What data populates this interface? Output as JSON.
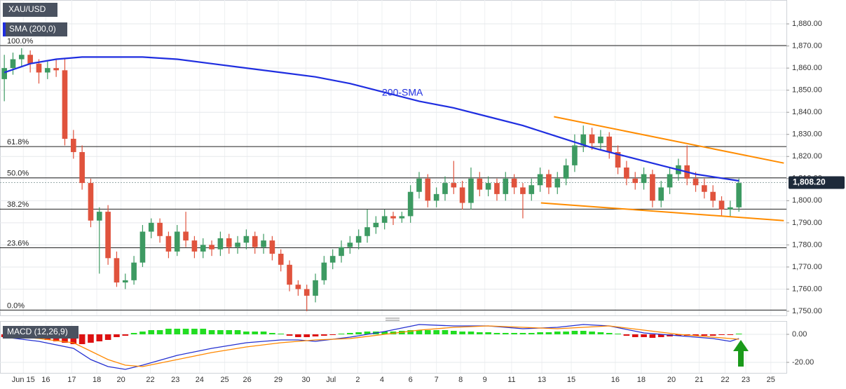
{
  "chart_data": {
    "type": "candlestick",
    "symbol": "XAU/USD",
    "xlim": [
      -0.5,
      90.5
    ],
    "xticks": [
      {
        "value": 2.2,
        "label": "Jun 15"
      },
      {
        "value": 4.8,
        "label": "16"
      },
      {
        "value": 7.8,
        "label": "17"
      },
      {
        "value": 10.7,
        "label": "18"
      },
      {
        "value": 13.5,
        "label": "20"
      },
      {
        "value": 16.9,
        "label": "22"
      },
      {
        "value": 19.8,
        "label": "23"
      },
      {
        "value": 22.6,
        "label": "24"
      },
      {
        "value": 25.5,
        "label": "25"
      },
      {
        "value": 28.1,
        "label": "26"
      },
      {
        "value": 31.7,
        "label": "29"
      },
      {
        "value": 34.9,
        "label": "30"
      },
      {
        "value": 37.8,
        "label": "Jul"
      },
      {
        "value": 40.9,
        "label": "2"
      },
      {
        "value": 43.7,
        "label": "4"
      },
      {
        "value": 47.0,
        "label": "6"
      },
      {
        "value": 50.0,
        "label": "7"
      },
      {
        "value": 52.8,
        "label": "8"
      },
      {
        "value": 55.6,
        "label": "9"
      },
      {
        "value": 58.7,
        "label": "11"
      },
      {
        "value": 62.2,
        "label": "13"
      },
      {
        "value": 65.6,
        "label": "15"
      },
      {
        "value": 70.7,
        "label": "16"
      },
      {
        "value": 73.7,
        "label": "18"
      },
      {
        "value": 77.2,
        "label": "20"
      },
      {
        "value": 80.4,
        "label": "21"
      },
      {
        "value": 83.4,
        "label": "22"
      },
      {
        "value": 85.8,
        "label": "23"
      },
      {
        "value": 88.7,
        "label": "25"
      }
    ],
    "ylim": [
      1748.1,
      1890.8
    ],
    "yticks": [
      {
        "value": 1750,
        "label": "1,750.00"
      },
      {
        "value": 1760,
        "label": "1,760.00"
      },
      {
        "value": 1770,
        "label": "1,770.00"
      },
      {
        "value": 1780,
        "label": "1,780.00"
      },
      {
        "value": 1790,
        "label": "1,790.00"
      },
      {
        "value": 1800,
        "label": "1,800.00"
      },
      {
        "value": 1810,
        "label": "1,810.00"
      },
      {
        "value": 1820,
        "label": "1,820.00"
      },
      {
        "value": 1830,
        "label": "1,830.00"
      },
      {
        "value": 1840,
        "label": "1,840.00"
      },
      {
        "value": 1850,
        "label": "1,850.00"
      },
      {
        "value": 1860,
        "label": "1,860.00"
      },
      {
        "value": 1870,
        "label": "1,870.00"
      },
      {
        "value": 1880,
        "label": "1,880.00"
      }
    ],
    "grid": true,
    "up_color": "#3d9a62",
    "down_color": "#e0533d",
    "candles": [
      [
        1855,
        1866,
        1845,
        1860
      ],
      [
        1860,
        1867,
        1857,
        1864
      ],
      [
        1864,
        1869,
        1861,
        1866
      ],
      [
        1866,
        1868,
        1858,
        1862
      ],
      [
        1862,
        1864,
        1853,
        1858
      ],
      [
        1858,
        1863,
        1855,
        1860
      ],
      [
        1860,
        1864,
        1856,
        1859
      ],
      [
        1859,
        1864,
        1825,
        1828
      ],
      [
        1828,
        1832,
        1819,
        1822
      ],
      [
        1822,
        1825,
        1805,
        1808
      ],
      [
        1808,
        1810,
        1788,
        1791
      ],
      [
        1791,
        1797,
        1767,
        1795
      ],
      [
        1795,
        1798,
        1771,
        1774
      ],
      [
        1774,
        1777,
        1761,
        1763
      ],
      [
        1763,
        1767,
        1760,
        1764
      ],
      [
        1764,
        1775,
        1762,
        1772
      ],
      [
        1772,
        1789,
        1770,
        1786
      ],
      [
        1786,
        1792,
        1783,
        1790
      ],
      [
        1790,
        1792,
        1781,
        1784
      ],
      [
        1784,
        1786,
        1774,
        1777
      ],
      [
        1777,
        1789,
        1775,
        1786
      ],
      [
        1786,
        1795,
        1779,
        1782
      ],
      [
        1782,
        1784,
        1774,
        1777
      ],
      [
        1777,
        1783,
        1774,
        1780
      ],
      [
        1780,
        1782,
        1775,
        1778
      ],
      [
        1778,
        1786,
        1775,
        1783
      ],
      [
        1783,
        1785,
        1776,
        1779
      ],
      [
        1779,
        1784,
        1776,
        1781
      ],
      [
        1781,
        1787,
        1778,
        1784
      ],
      [
        1784,
        1786,
        1776,
        1779
      ],
      [
        1779,
        1785,
        1776,
        1782
      ],
      [
        1782,
        1784,
        1773,
        1776
      ],
      [
        1776,
        1778,
        1768,
        1771
      ],
      [
        1771,
        1773,
        1759,
        1762
      ],
      [
        1762,
        1764,
        1757,
        1760
      ],
      [
        1760,
        1762,
        1750,
        1757
      ],
      [
        1757,
        1767,
        1754,
        1764
      ],
      [
        1764,
        1775,
        1762,
        1772
      ],
      [
        1772,
        1778,
        1769,
        1775
      ],
      [
        1775,
        1782,
        1772,
        1779
      ],
      [
        1779,
        1784,
        1776,
        1781
      ],
      [
        1781,
        1787,
        1778,
        1784
      ],
      [
        1784,
        1796,
        1781,
        1788
      ],
      [
        1788,
        1793,
        1785,
        1790
      ],
      [
        1790,
        1796,
        1787,
        1793
      ],
      [
        1793,
        1795,
        1789,
        1792
      ],
      [
        1792,
        1795,
        1790,
        1793
      ],
      [
        1793,
        1807,
        1790,
        1804
      ],
      [
        1804,
        1813,
        1801,
        1810
      ],
      [
        1810,
        1812,
        1797,
        1800
      ],
      [
        1800,
        1806,
        1797,
        1803
      ],
      [
        1803,
        1811,
        1800,
        1808
      ],
      [
        1808,
        1818,
        1803,
        1806
      ],
      [
        1806,
        1809,
        1796,
        1799
      ],
      [
        1799,
        1815,
        1796,
        1810
      ],
      [
        1810,
        1813,
        1802,
        1805
      ],
      [
        1805,
        1811,
        1802,
        1808
      ],
      [
        1808,
        1810,
        1800,
        1803
      ],
      [
        1803,
        1813,
        1800,
        1810
      ],
      [
        1810,
        1812,
        1803,
        1806
      ],
      [
        1806,
        1808,
        1792,
        1803
      ],
      [
        1803,
        1810,
        1800,
        1807
      ],
      [
        1807,
        1815,
        1804,
        1812
      ],
      [
        1812,
        1814,
        1803,
        1806
      ],
      [
        1806,
        1813,
        1803,
        1810
      ],
      [
        1810,
        1819,
        1807,
        1816
      ],
      [
        1816,
        1830,
        1813,
        1825
      ],
      [
        1825,
        1834,
        1822,
        1830
      ],
      [
        1830,
        1833,
        1823,
        1826
      ],
      [
        1826,
        1832,
        1823,
        1829
      ],
      [
        1829,
        1831,
        1819,
        1822
      ],
      [
        1822,
        1825,
        1812,
        1815
      ],
      [
        1815,
        1818,
        1807,
        1810
      ],
      [
        1810,
        1813,
        1805,
        1808
      ],
      [
        1808,
        1815,
        1805,
        1812
      ],
      [
        1812,
        1814,
        1797,
        1800
      ],
      [
        1800,
        1809,
        1797,
        1806
      ],
      [
        1806,
        1815,
        1803,
        1812
      ],
      [
        1812,
        1819,
        1809,
        1816
      ],
      [
        1816,
        1825,
        1807,
        1810
      ],
      [
        1810,
        1813,
        1804,
        1807
      ],
      [
        1807,
        1810,
        1801,
        1804
      ],
      [
        1804,
        1807,
        1797,
        1800
      ],
      [
        1800,
        1802,
        1793,
        1796
      ],
      [
        1796,
        1800,
        1793,
        1797
      ],
      [
        1797,
        1810,
        1795,
        1808
      ]
    ],
    "sma": {
      "name": "SMA (200,0)",
      "annotation": "200-SMA",
      "color": "#1f2ee0",
      "x": [
        0,
        3,
        6,
        9,
        12,
        16,
        20,
        24,
        28,
        32,
        36,
        40,
        44,
        48,
        52,
        56,
        60,
        64,
        68,
        72,
        76,
        80,
        85
      ],
      "values": [
        1858,
        1862,
        1864,
        1865,
        1865,
        1865,
        1864,
        1862,
        1860,
        1858,
        1856,
        1853,
        1849,
        1845,
        1842,
        1838,
        1834,
        1829,
        1824,
        1820,
        1816,
        1812,
        1809
      ]
    },
    "fib_levels": [
      {
        "label": "100.0%",
        "value": 1870.2
      },
      {
        "label": "61.8%",
        "value": 1824.5
      },
      {
        "label": "50.0%",
        "value": 1810.35
      },
      {
        "label": "38.2%",
        "value": 1796.2
      },
      {
        "label": "23.6%",
        "value": 1778.7
      },
      {
        "label": "0.0%",
        "value": 1750.5
      }
    ],
    "trendlines": {
      "color": "#ff8c00",
      "lines": [
        {
          "x": [
            63.6,
            90.2
          ],
          "values": [
            1838,
            1817
          ]
        },
        {
          "x": [
            62.1,
            90.2
          ],
          "values": [
            1799,
            1791
          ]
        }
      ]
    },
    "last_price": {
      "value": 1808.2,
      "label": "1,808.20"
    },
    "macd": {
      "title": "MACD (12,26,9)",
      "ylim": [
        -27.5,
        8.5
      ],
      "yticks": [
        {
          "value": 0,
          "label": "0.00"
        },
        {
          "value": -20,
          "label": "-20.00"
        }
      ],
      "up_color": "#22dd22",
      "down_color": "#dd1111",
      "histogram": [
        -2,
        -3,
        -3,
        -3,
        -3,
        -4,
        -5,
        -6,
        -7,
        -7,
        -6,
        -5,
        -4,
        -2,
        -1,
        1,
        2,
        3,
        3,
        4,
        4,
        4,
        4,
        4,
        3,
        3,
        3,
        3,
        2,
        2,
        2,
        1,
        0.5,
        -1,
        -2,
        -2,
        -1.5,
        -1,
        -0.5,
        0.5,
        1,
        1.5,
        2,
        2,
        2,
        2,
        2.5,
        3,
        3,
        3,
        3,
        3,
        2.5,
        2,
        2,
        1.5,
        1.5,
        1,
        1,
        1,
        1,
        1,
        1.5,
        1.5,
        2,
        2,
        2.5,
        2.5,
        2,
        1.5,
        1,
        0.5,
        -1,
        -2,
        -2,
        -2.5,
        -2,
        -1.5,
        -1,
        -1,
        -1,
        -1,
        -1,
        -0.5,
        -0.5,
        0.5
      ],
      "x": [
        0,
        4,
        8,
        10,
        12,
        14,
        16,
        20,
        24,
        28,
        32,
        34,
        36,
        40,
        44,
        48,
        52,
        56,
        60,
        64,
        67,
        70,
        74,
        78,
        82,
        84,
        85
      ],
      "lines": [
        {
          "color": "#2430d0",
          "values": [
            -2,
            -5,
            -10,
            -18,
            -23,
            -25,
            -22,
            -15,
            -10,
            -6,
            -4,
            -4,
            -5,
            -2,
            2,
            7,
            6,
            6,
            4,
            5,
            7,
            6,
            1,
            -1,
            -3,
            -5,
            -3
          ]
        },
        {
          "color": "#ff8800",
          "values": [
            -1,
            -3,
            -6,
            -12,
            -18,
            -22,
            -23,
            -18,
            -13,
            -9,
            -6,
            -5,
            -4,
            -3,
            0,
            3,
            5,
            6,
            5,
            4,
            5,
            6,
            3,
            0,
            -2,
            -3,
            -3.5
          ]
        }
      ]
    }
  }
}
